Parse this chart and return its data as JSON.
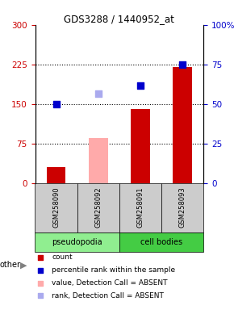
{
  "title": "GDS3288 / 1440952_at",
  "samples": [
    "GSM258090",
    "GSM258092",
    "GSM258091",
    "GSM258093"
  ],
  "groups": [
    "pseudopodia",
    "pseudopodia",
    "cell bodies",
    "cell bodies"
  ],
  "bar_values": [
    30,
    null,
    140,
    220
  ],
  "bar_values_absent": [
    null,
    85,
    null,
    null
  ],
  "rank_values": [
    150,
    null,
    185,
    225
  ],
  "rank_values_absent": [
    null,
    170,
    null,
    null
  ],
  "left_ylim": [
    0,
    300
  ],
  "right_ylim": [
    0,
    100
  ],
  "left_yticks": [
    0,
    75,
    150,
    225,
    300
  ],
  "right_yticks": [
    0,
    25,
    50,
    75,
    100
  ],
  "hlines": [
    75,
    150,
    225
  ],
  "bar_color_present": "#cc0000",
  "bar_color_absent": "#ffaaaa",
  "rank_color_present": "#0000cc",
  "rank_color_absent": "#aaaaee",
  "group_colors": {
    "pseudopodia": "#90ee90",
    "cell bodies": "#44cc44"
  },
  "left_axis_color": "#cc0000",
  "right_axis_color": "#0000cc",
  "other_label": "other",
  "bar_width": 0.45,
  "rank_marker_size": 40,
  "background_color": "white"
}
